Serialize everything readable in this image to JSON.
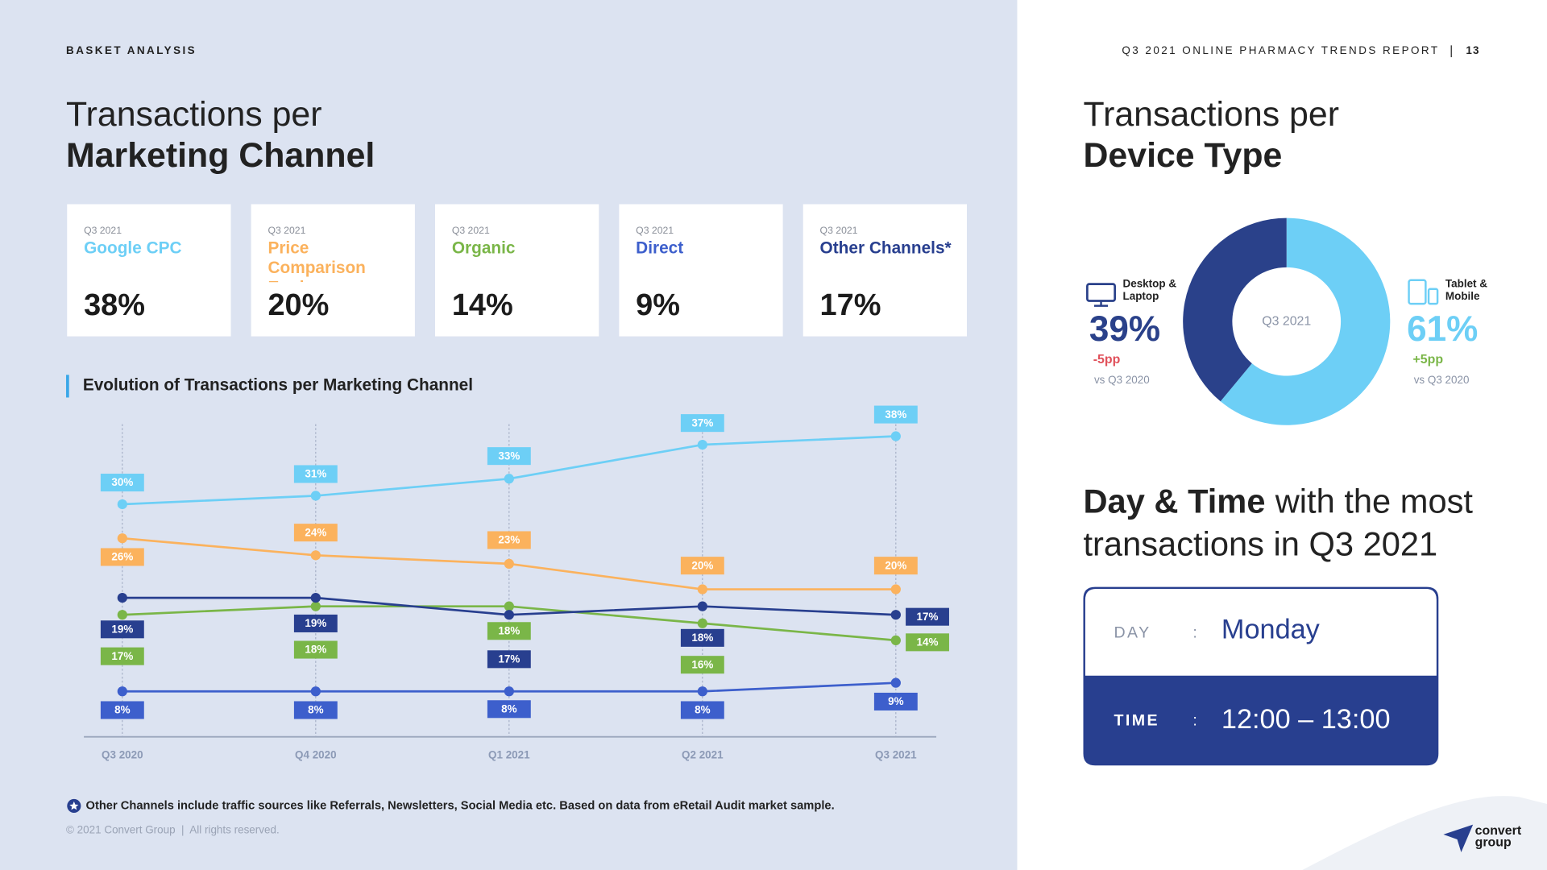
{
  "header": {
    "section": "BASKET ANALYSIS",
    "report": "Q3 2021 ONLINE PHARMACY TRENDS REPORT",
    "page": "13"
  },
  "left_title": {
    "line1": "Transactions per",
    "line2": "Marketing Channel"
  },
  "chart_data": [
    {
      "type": "line",
      "title": "Evolution of Transactions per Marketing Channel",
      "categories": [
        "Q3 2020",
        "Q4 2020",
        "Q1 2021",
        "Q2 2021",
        "Q3 2021"
      ],
      "ylim": [
        3,
        40
      ],
      "series": [
        {
          "name": "Google CPC",
          "color": "#6dcff6",
          "values": [
            30,
            31,
            33,
            37,
            38
          ],
          "value_labels": [
            "30%",
            "31%",
            "33%",
            "37%",
            "38%"
          ]
        },
        {
          "name": "Price Comparison Engices",
          "color": "#fbb25d",
          "values": [
            26,
            24,
            23,
            20,
            20
          ],
          "value_labels": [
            "26%",
            "24%",
            "23%",
            "20%",
            "20%"
          ]
        },
        {
          "name": "Organic",
          "color": "#7ab648",
          "values": [
            17,
            18,
            18,
            16,
            14
          ],
          "value_labels": [
            "17%",
            "18%",
            "18%",
            "16%",
            "14%"
          ]
        },
        {
          "name": "Direct",
          "color": "#3d5fcc",
          "values": [
            8,
            8,
            8,
            8,
            9
          ],
          "value_labels": [
            "8%",
            "8%",
            "8%",
            "8%",
            "9%"
          ]
        },
        {
          "name": "Other Channels*",
          "color": "#283f8f",
          "values": [
            19,
            19,
            17,
            18,
            17
          ],
          "value_labels": [
            "19%",
            "19%",
            "17%",
            "18%",
            "17%"
          ]
        }
      ]
    },
    {
      "type": "donut",
      "title": "Transactions per",
      "subtitle": "Device Type",
      "center_label": "Q3 2021",
      "categories": [
        "Desktop & Laptop",
        "Tablet & Mobile"
      ],
      "values": [
        39,
        61
      ],
      "value_labels": [
        "39%",
        "61%"
      ],
      "colors": [
        "#2a418a",
        "#6dcff6"
      ],
      "changes": [
        "-5pp",
        "+5pp"
      ],
      "change_colors": [
        "#e0505a",
        "#7ab648"
      ],
      "comparison": "vs Q3 2020"
    }
  ],
  "day_time": {
    "title_bold": "Day & Time",
    "title_rest": "with the most transactions in Q3 2021",
    "day_label": "DAY",
    "day": "Monday",
    "time_label": "TIME",
    "time": "12:00 – 13:00",
    "separator": ":"
  },
  "footnote": "Other Channels include traffic sources like Referrals, Newsletters, Social Media etc. Based on data from eRetail Audit market sample.",
  "copyright": "© 2021 Convert Group  |  All rights reserved.",
  "logo": "convert group"
}
